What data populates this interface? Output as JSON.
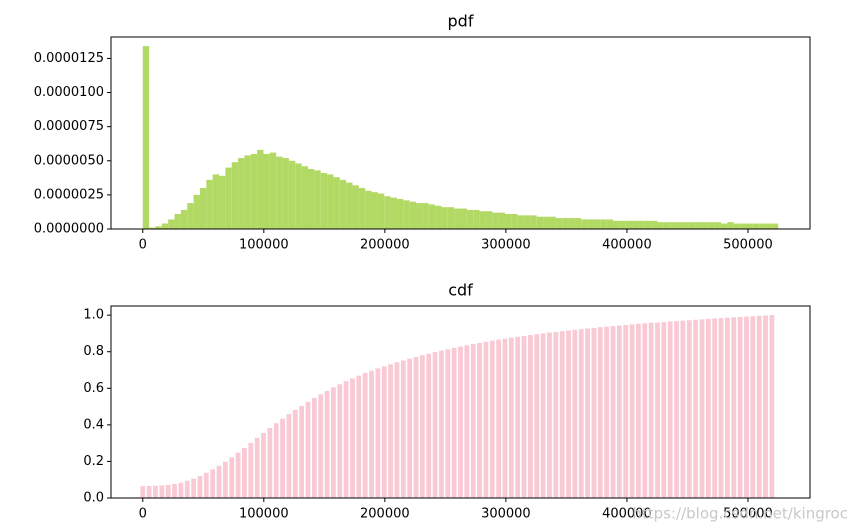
{
  "chart_data": [
    {
      "type": "histogram",
      "title": "pdf",
      "color": "#b3d965",
      "bins": [
        0,
        5250,
        10500,
        15750,
        21000,
        26250,
        31500,
        36750,
        42000,
        47250,
        52500,
        57750,
        63000,
        68250,
        73500,
        78750,
        84000,
        89250,
        94500,
        99750,
        105000,
        110250,
        115500,
        120750,
        126000,
        131250,
        136500,
        141750,
        147000,
        152250,
        157500,
        162750,
        168000,
        173250,
        178500,
        183750,
        189000,
        194250,
        199500,
        204750,
        210000,
        215250,
        220500,
        225750,
        231000,
        236250,
        241500,
        246750,
        252000,
        257250,
        262500,
        267750,
        273000,
        278250,
        283500,
        288750,
        294000,
        299250,
        304500,
        309750,
        315000,
        320250,
        325500,
        330750,
        336000,
        341250,
        346500,
        351750,
        357000,
        362250,
        367500,
        372750,
        378000,
        383250,
        388500,
        393750,
        399000,
        404250,
        409500,
        414750,
        420000,
        425250,
        430500,
        435750,
        441000,
        446250,
        451500,
        456750,
        462000,
        467250,
        472500,
        477750,
        483000,
        488250,
        493500,
        498750,
        504000,
        509250,
        514500,
        519750,
        525000
      ],
      "values": [
        1.34e-05,
        1e-07,
        2e-07,
        4e-07,
        7e-07,
        1.1e-06,
        1.4e-06,
        1.9e-06,
        2.5e-06,
        3e-06,
        3.6e-06,
        4e-06,
        3.9e-06,
        4.5e-06,
        4.9e-06,
        5.2e-06,
        5.4e-06,
        5.5e-06,
        5.8e-06,
        5.5e-06,
        5.6e-06,
        5.3e-06,
        5.2e-06,
        5e-06,
        4.8e-06,
        4.6e-06,
        4.4e-06,
        4.3e-06,
        4.1e-06,
        4e-06,
        3.8e-06,
        3.6e-06,
        3.4e-06,
        3.2e-06,
        3e-06,
        2.8e-06,
        2.7e-06,
        2.6e-06,
        2.4e-06,
        2.3e-06,
        2.2e-06,
        2.1e-06,
        2e-06,
        1.9e-06,
        1.9e-06,
        1.8e-06,
        1.7e-06,
        1.6e-06,
        1.6e-06,
        1.5e-06,
        1.5e-06,
        1.4e-06,
        1.4e-06,
        1.3e-06,
        1.3e-06,
        1.2e-06,
        1.2e-06,
        1.1e-06,
        1.1e-06,
        1e-06,
        1e-06,
        1e-06,
        9e-07,
        9e-07,
        9e-07,
        8e-07,
        8e-07,
        8e-07,
        8e-07,
        7e-07,
        7e-07,
        7e-07,
        7e-07,
        7e-07,
        6e-07,
        6e-07,
        6e-07,
        6e-07,
        6e-07,
        6e-07,
        6e-07,
        5e-07,
        5e-07,
        5e-07,
        5e-07,
        5e-07,
        5e-07,
        5e-07,
        5e-07,
        5e-07,
        5e-07,
        4e-07,
        5e-07,
        4e-07,
        4e-07,
        4e-07,
        4e-07,
        4e-07,
        4e-07,
        4e-07
      ],
      "xlim": [
        -26250,
        551250
      ],
      "xticks": [
        0,
        100000,
        200000,
        300000,
        400000,
        500000
      ],
      "ylim": [
        0,
        1.407e-05
      ],
      "yticks": [
        {
          "value": 0,
          "label": "0.0000000"
        },
        {
          "value": 2.5e-06,
          "label": "0.0000025"
        },
        {
          "value": 5e-06,
          "label": "0.0000050"
        },
        {
          "value": 7.5e-06,
          "label": "0.0000075"
        },
        {
          "value": 1e-05,
          "label": "0.0000100"
        },
        {
          "value": 1.25e-05,
          "label": "0.0000125"
        }
      ]
    },
    {
      "type": "bar",
      "title": "cdf",
      "color": "#f9c9d4",
      "x": [
        0,
        5250,
        10500,
        15750,
        21000,
        26250,
        31500,
        36750,
        42000,
        47250,
        52500,
        57750,
        63000,
        68250,
        73500,
        78750,
        84000,
        89250,
        94500,
        99750,
        105000,
        110250,
        115500,
        120750,
        126000,
        131250,
        136500,
        141750,
        147000,
        152250,
        157500,
        162750,
        168000,
        173250,
        178500,
        183750,
        189000,
        194250,
        199500,
        204750,
        210000,
        215250,
        220500,
        225750,
        231000,
        236250,
        241500,
        246750,
        252000,
        257250,
        262500,
        267750,
        273000,
        278250,
        283500,
        288750,
        294000,
        299250,
        304500,
        309750,
        315000,
        320250,
        325500,
        330750,
        336000,
        341250,
        346500,
        351750,
        357000,
        362250,
        367500,
        372750,
        378000,
        383250,
        388500,
        393750,
        399000,
        404250,
        409500,
        414750,
        420000,
        425250,
        430500,
        435750,
        441000,
        446250,
        451500,
        456750,
        462000,
        467250,
        472500,
        477750,
        483000,
        488250,
        493500,
        498750,
        504000,
        509250,
        514500,
        519750
      ],
      "values": [
        0.065,
        0.066,
        0.067,
        0.069,
        0.072,
        0.077,
        0.084,
        0.094,
        0.106,
        0.12,
        0.138,
        0.157,
        0.176,
        0.198,
        0.222,
        0.248,
        0.274,
        0.301,
        0.329,
        0.356,
        0.383,
        0.409,
        0.434,
        0.459,
        0.482,
        0.504,
        0.526,
        0.547,
        0.567,
        0.586,
        0.605,
        0.622,
        0.639,
        0.654,
        0.669,
        0.683,
        0.696,
        0.709,
        0.72,
        0.731,
        0.742,
        0.752,
        0.762,
        0.771,
        0.781,
        0.789,
        0.798,
        0.806,
        0.813,
        0.821,
        0.828,
        0.835,
        0.842,
        0.848,
        0.854,
        0.86,
        0.866,
        0.871,
        0.877,
        0.882,
        0.886,
        0.891,
        0.896,
        0.9,
        0.905,
        0.908,
        0.912,
        0.916,
        0.92,
        0.923,
        0.927,
        0.93,
        0.934,
        0.937,
        0.94,
        0.943,
        0.946,
        0.949,
        0.952,
        0.955,
        0.958,
        0.96,
        0.962,
        0.965,
        0.967,
        0.97,
        0.972,
        0.975,
        0.977,
        0.98,
        0.982,
        0.984,
        0.986,
        0.988,
        0.99,
        0.992,
        0.994,
        0.996,
        0.998,
        1.0
      ],
      "xlim": [
        -26250,
        551250
      ],
      "xticks": [
        0,
        100000,
        200000,
        300000,
        400000,
        500000
      ],
      "ylim": [
        0,
        1.05
      ],
      "yticks": [
        {
          "value": 0,
          "label": "0.0"
        },
        0.2,
        0.4,
        0.6,
        0.8,
        {
          "value": 1,
          "label": "1.0"
        }
      ],
      "watermark": "https://blog.csdn.net/kingroc"
    }
  ]
}
